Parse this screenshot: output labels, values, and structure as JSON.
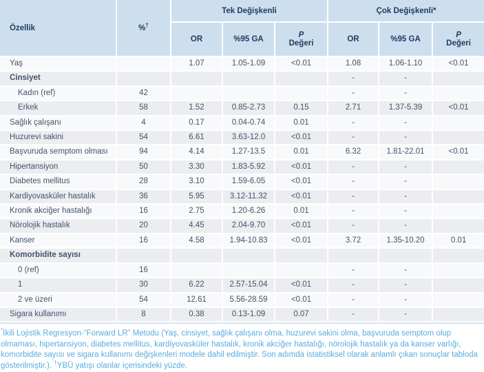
{
  "table": {
    "header": {
      "ozellik": "Özellik",
      "pct": "%",
      "pct_sup": "†",
      "groups": [
        {
          "label": "Tek Değişkenli"
        },
        {
          "label": "Çok Değişkenli*"
        }
      ],
      "sub": {
        "or": "OR",
        "ga": "%95 GA",
        "p1": "P",
        "p2": "Değeri"
      }
    },
    "rows": [
      {
        "label": "Yaş",
        "indent": false,
        "bold": false,
        "pct": "",
        "u_or": "1.07",
        "u_ga": "1.05-1.09",
        "u_p": "<0.01",
        "m_or": "1.08",
        "m_ga": "1.06-1.10",
        "m_p": "<0.01"
      },
      {
        "label": "Cinsiyet",
        "indent": false,
        "bold": true,
        "pct": "",
        "u_or": "",
        "u_ga": "",
        "u_p": "",
        "m_or": "-",
        "m_ga": "-",
        "m_p": ""
      },
      {
        "label": "Kadın (ref)",
        "indent": true,
        "bold": false,
        "pct": "42",
        "u_or": "",
        "u_ga": "",
        "u_p": "",
        "m_or": "-",
        "m_ga": "-",
        "m_p": ""
      },
      {
        "label": "Erkek",
        "indent": true,
        "bold": false,
        "pct": "58",
        "u_or": "1.52",
        "u_ga": "0.85-2.73",
        "u_p": "0.15",
        "m_or": "2.71",
        "m_ga": "1.37-5.39",
        "m_p": "<0.01"
      },
      {
        "label": "Sağlık çalışanı",
        "indent": false,
        "bold": false,
        "pct": "4",
        "u_or": "0.17",
        "u_ga": "0.04-0.74",
        "u_p": "0.01",
        "m_or": "-",
        "m_ga": "-",
        "m_p": ""
      },
      {
        "label": "Huzurevi sakini",
        "indent": false,
        "bold": false,
        "pct": "54",
        "u_or": "6.61",
        "u_ga": "3.63-12.0",
        "u_p": "<0.01",
        "m_or": "-",
        "m_ga": "-",
        "m_p": ""
      },
      {
        "label": "Başvuruda semptom olması",
        "indent": false,
        "bold": false,
        "pct": "94",
        "u_or": "4.14",
        "u_ga": "1.27-13.5",
        "u_p": "0.01",
        "m_or": "6.32",
        "m_ga": "1.81-22.01",
        "m_p": "<0.01"
      },
      {
        "label": "Hipertansiyon",
        "indent": false,
        "bold": false,
        "pct": "50",
        "u_or": "3.30",
        "u_ga": "1.83-5.92",
        "u_p": "<0.01",
        "m_or": "-",
        "m_ga": "-",
        "m_p": ""
      },
      {
        "label": "Diabetes mellitus",
        "indent": false,
        "bold": false,
        "pct": "28",
        "u_or": "3.10",
        "u_ga": "1.59-6.05",
        "u_p": "<0.01",
        "m_or": "-",
        "m_ga": "-",
        "m_p": ""
      },
      {
        "label": "Kardiyovasküler hastalık",
        "indent": false,
        "bold": false,
        "pct": "36",
        "u_or": "5.95",
        "u_ga": "3.12-11.32",
        "u_p": "<0.01",
        "m_or": "-",
        "m_ga": "-",
        "m_p": ""
      },
      {
        "label": "Kronik akciğer hastalığı",
        "indent": false,
        "bold": false,
        "pct": "16",
        "u_or": "2.75",
        "u_ga": "1.20-6.26",
        "u_p": "0.01",
        "m_or": "-",
        "m_ga": "-",
        "m_p": ""
      },
      {
        "label": "Nörolojik hastalık",
        "indent": false,
        "bold": false,
        "pct": "20",
        "u_or": "4.45",
        "u_ga": "2.04-9.70",
        "u_p": "<0.01",
        "m_or": "-",
        "m_ga": "-",
        "m_p": ""
      },
      {
        "label": "Kanser",
        "indent": false,
        "bold": false,
        "pct": "16",
        "u_or": "4.58",
        "u_ga": "1.94-10.83",
        "u_p": "<0.01",
        "m_or": "3.72",
        "m_ga": "1.35-10.20",
        "m_p": "0.01"
      },
      {
        "label": "Komorbidite sayısı",
        "indent": false,
        "bold": true,
        "pct": "",
        "u_or": "",
        "u_ga": "",
        "u_p": "",
        "m_or": "",
        "m_ga": "",
        "m_p": ""
      },
      {
        "label": "0 (ref)",
        "indent": true,
        "bold": false,
        "pct": "16",
        "u_or": "",
        "u_ga": "",
        "u_p": "",
        "m_or": "-",
        "m_ga": "-",
        "m_p": ""
      },
      {
        "label": "1",
        "indent": true,
        "bold": false,
        "pct": "30",
        "u_or": "6.22",
        "u_ga": "2.57-15.04",
        "u_p": "<0.01",
        "m_or": "-",
        "m_ga": "-",
        "m_p": ""
      },
      {
        "label": "2 ve üzeri",
        "indent": true,
        "bold": false,
        "pct": "54",
        "u_or": "12.61",
        "u_ga": "5.56-28.59",
        "u_p": "<0.01",
        "m_or": "-",
        "m_ga": "-",
        "m_p": ""
      },
      {
        "label": "Sigara kullanımı",
        "indent": false,
        "bold": false,
        "pct": "8",
        "u_or": "0.38",
        "u_ga": "0.13-1.09",
        "u_p": "0.07",
        "m_or": "-",
        "m_ga": "-",
        "m_p": ""
      }
    ]
  },
  "footnote": {
    "marker1": "*",
    "text1": "İkili Lojistik Regresyon-“Forward LR” Metodu (Yaş, cinsiyet, sağlık çalışanı olma, huzurevi sakini olma, başvuruda semptom olup olmaması, hipertansiyon, diabetes mellitus, kardiyovasküler hastalık, kronik akciğer hastalığı, nörolojik hastalık ya da kanser varlığı, komorbidite sayısı ve sigara kullanımı değişkenleri modele dahil edilmiştir. Son adımda istatistiksel olarak anlamlı çıkan sonuçlar tabloda gösterilmiştir.). ",
    "marker2": "†",
    "text2": "YBÜ yatışı olanlar içerisindeki yüzde."
  },
  "colors": {
    "header_bg": "#cddfee",
    "header_text": "#1d3c63",
    "row_bg": "#f8f9fb",
    "row_alt_bg": "#ebedf0",
    "body_text": "#44536a",
    "cell_gap": "#ffffff",
    "footnote_text": "#56ace0",
    "table_bottom_border": "#d5e3ef"
  }
}
